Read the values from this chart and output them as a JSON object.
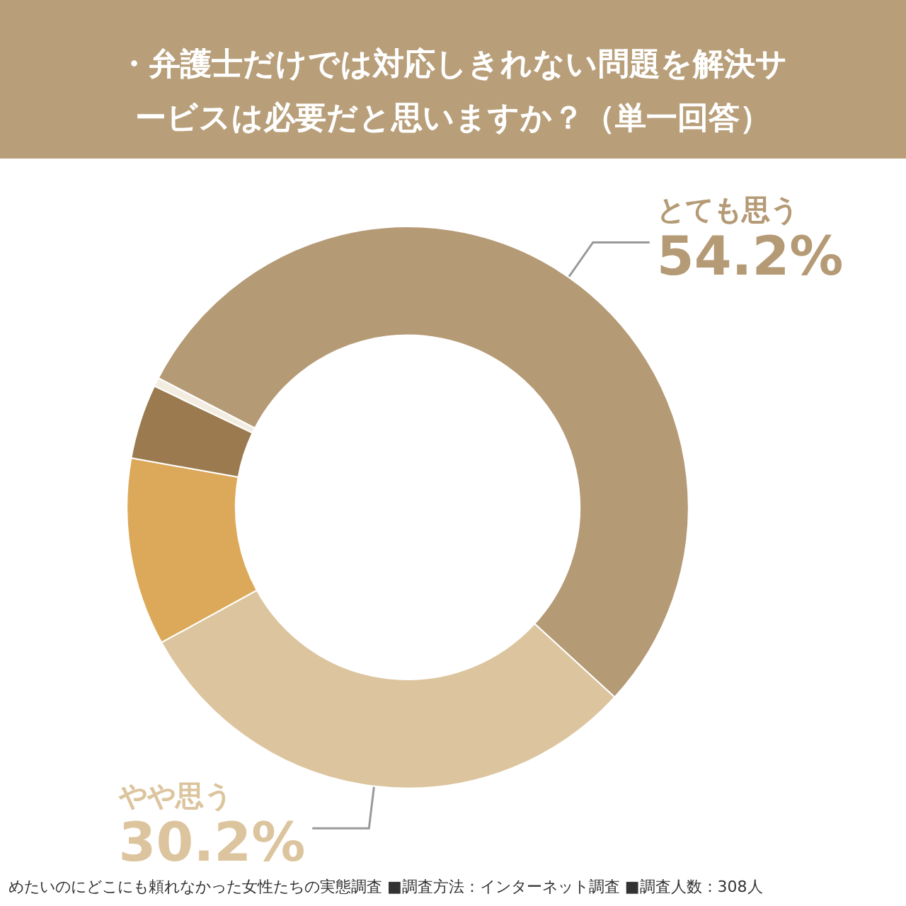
{
  "chart_data": {
    "type": "donut",
    "title": "・弁護士だけでは対応しきれない問題を解決サービスは必要だと思いますか？（単一回答）",
    "categories": [
      "とても思う",
      "やや思う",
      null,
      null,
      null
    ],
    "values": [
      54.2,
      30.2,
      10.8,
      4.3,
      0.5
    ],
    "colors": [
      "#b59a76",
      "#dcc59e",
      "#dca95a",
      "#9a7a4e",
      "#f3ece0"
    ],
    "value_labels": [
      "54.2%",
      "30.2%",
      null,
      null,
      null
    ],
    "annotations": [
      "めたいのにどこにも頼れなかった女性たちの実態調査 ■調査方法：インターネット調査 ■調査人数：308人"
    ],
    "legend": false
  }
}
